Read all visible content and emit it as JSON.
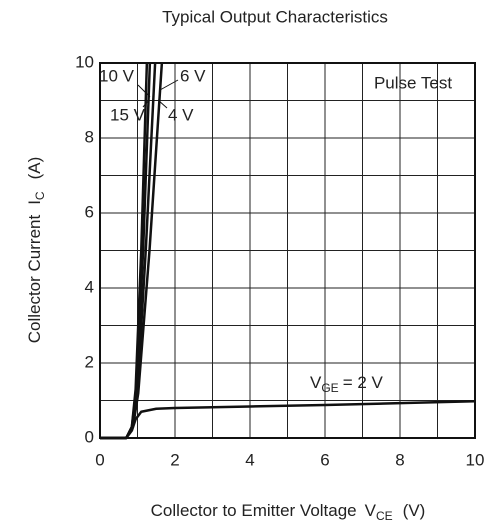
{
  "chart_data": {
    "type": "line",
    "title": "Typical Output Characteristics",
    "xlabel": {
      "text": "Collector to Emitter Voltage",
      "symbol": "V",
      "subscript": "CE",
      "unit": "(V)"
    },
    "ylabel": {
      "text": "Collector Current",
      "symbol": "I",
      "subscript": "C",
      "unit": "(A)"
    },
    "xlim": [
      0,
      10
    ],
    "ylim": [
      0,
      10
    ],
    "xticks": [
      0,
      2,
      4,
      6,
      8,
      10
    ],
    "yticks": [
      0,
      2,
      4,
      6,
      8,
      10
    ],
    "minor_xticks": [
      1,
      3,
      5,
      7,
      9
    ],
    "minor_yticks": [
      1,
      3,
      5,
      7,
      9
    ],
    "grid": true,
    "annotation": "Pulse Test",
    "series": [
      {
        "name": "15 V",
        "color": "#111111",
        "x": [
          0,
          0.7,
          0.85,
          0.95,
          1.1,
          1.25
        ],
        "values": [
          0,
          0,
          0.3,
          1.3,
          5,
          10
        ]
      },
      {
        "name": "10 V",
        "color": "#111111",
        "x": [
          0,
          0.7,
          0.85,
          0.97,
          1.15,
          1.33
        ],
        "values": [
          0,
          0,
          0.3,
          1.3,
          5,
          10
        ]
      },
      {
        "name": "6 V",
        "color": "#111111",
        "x": [
          0,
          0.7,
          0.87,
          1.0,
          1.22,
          1.47
        ],
        "values": [
          0,
          0,
          0.3,
          1.3,
          5,
          10
        ]
      },
      {
        "name": "4 V",
        "color": "#111111",
        "x": [
          0,
          0.7,
          0.88,
          1.02,
          1.32,
          1.65
        ],
        "values": [
          0,
          0,
          0.3,
          1.2,
          5,
          10
        ]
      },
      {
        "label": {
          "symbol": "V",
          "subscript": "GE",
          "text": "= 2 V"
        },
        "color": "#111111",
        "x": [
          0,
          0.7,
          0.85,
          0.95,
          1.1,
          1.5,
          2,
          4,
          6,
          8,
          10
        ],
        "values": [
          0,
          0,
          0.2,
          0.5,
          0.7,
          0.78,
          0.8,
          0.84,
          0.88,
          0.93,
          0.98
        ]
      }
    ]
  }
}
